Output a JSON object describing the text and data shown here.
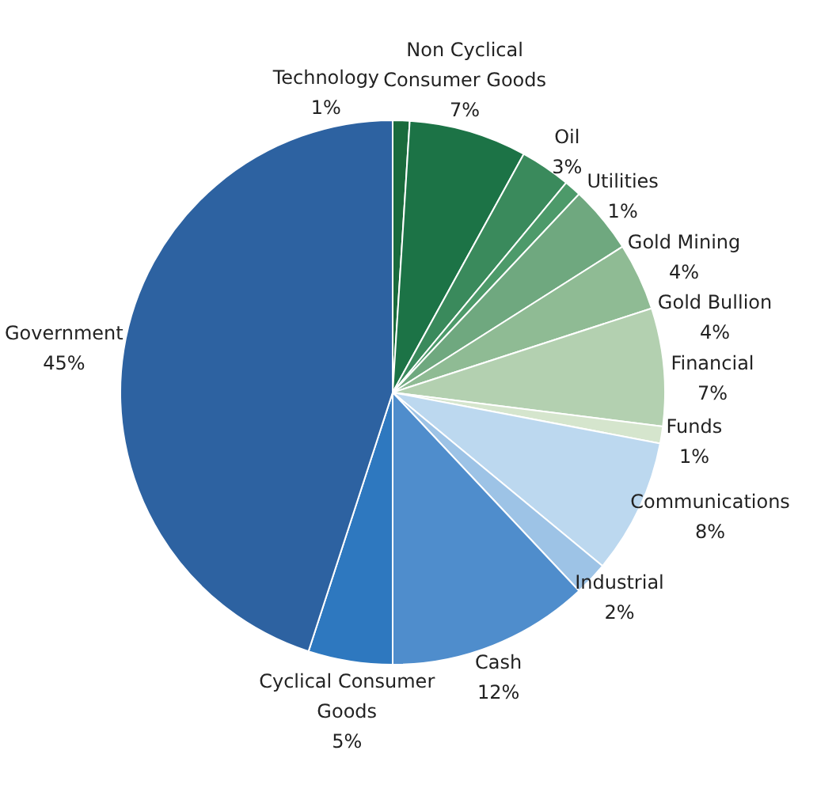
{
  "chart_data": {
    "type": "pie",
    "categories": [
      "Technology",
      "Non Cyclical Consumer Goods",
      "Oil",
      "Utilities",
      "Gold Mining",
      "Gold Bullion",
      "Financial",
      "Funds",
      "Communications",
      "Industrial",
      "Cash",
      "Cyclical Consumer Goods",
      "Government"
    ],
    "values": [
      1,
      7,
      3,
      1,
      4,
      4,
      7,
      1,
      8,
      2,
      12,
      5,
      45
    ],
    "value_labels": [
      "1%",
      "7%",
      "3%",
      "1%",
      "4%",
      "4%",
      "7%",
      "1%",
      "8%",
      "2%",
      "12%",
      "5%",
      "45%"
    ],
    "colors": [
      "#1a6b3c",
      "#1c7346",
      "#3a8a5c",
      "#4d9a6a",
      "#6fa87f",
      "#8fbb94",
      "#b3d0b0",
      "#d5e5cd",
      "#bcd8ef",
      "#9dc3e6",
      "#4f8dcc",
      "#2e78bf",
      "#2d62a1"
    ],
    "legend": false
  }
}
